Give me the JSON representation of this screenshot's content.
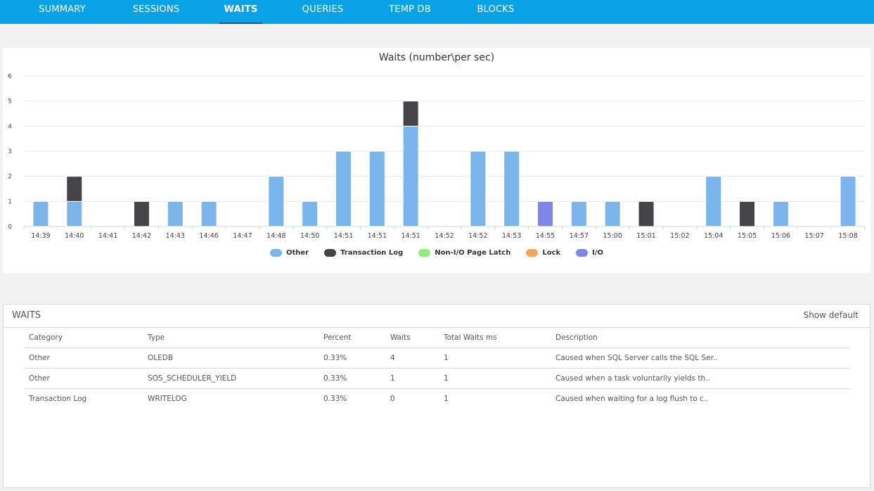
{
  "nav": {
    "tabs": [
      {
        "label": "SUMMARY",
        "active": false
      },
      {
        "label": "SESSIONS",
        "active": false
      },
      {
        "label": "WAITS",
        "active": true
      },
      {
        "label": "QUERIES",
        "active": false
      },
      {
        "label": "TEMP DB",
        "active": false
      },
      {
        "label": "BLOCKS",
        "active": false
      }
    ]
  },
  "colors": {
    "nav_bg": "#0aa2e6",
    "other": "#7cb5ec",
    "transaction_log": "#434348",
    "non_io_page_latch": "#90ed7d",
    "lock": "#f7a35c",
    "io": "#8085e9"
  },
  "chart_data": {
    "type": "bar",
    "title": "Waits (number\\per sec)",
    "stacked": true,
    "ylim": [
      0,
      6
    ],
    "yticks": [
      0,
      1,
      2,
      3,
      4,
      5,
      6
    ],
    "grid": true,
    "legend_position": "bottom",
    "categories": [
      "14:39",
      "14:40",
      "14:41",
      "14:42",
      "14:43",
      "14:46",
      "14:47",
      "14:48",
      "14:50",
      "14:51",
      "14:51",
      "14:51",
      "14:52",
      "14:52",
      "14:53",
      "14:55",
      "14:57",
      "15:00",
      "15:01",
      "15:02",
      "15:04",
      "15:05",
      "15:06",
      "15:07",
      "15:08"
    ],
    "series": [
      {
        "name": "Other",
        "color": "#7cb5ec",
        "values": [
          1,
          1,
          0,
          0,
          1,
          1,
          0,
          2,
          1,
          3,
          3,
          4,
          0,
          3,
          3,
          0,
          1,
          1,
          0,
          0,
          2,
          0,
          1,
          0,
          2
        ]
      },
      {
        "name": "Transaction Log",
        "color": "#434348",
        "values": [
          0,
          1,
          0,
          1,
          0,
          0,
          0,
          0,
          0,
          0,
          0,
          1,
          0,
          0,
          0,
          0,
          0,
          0,
          1,
          0,
          0,
          1,
          0,
          0,
          0
        ]
      },
      {
        "name": "Non-I/O Page Latch",
        "color": "#90ed7d",
        "values": [
          0,
          0,
          0,
          0,
          0,
          0,
          0,
          0,
          0,
          0,
          0,
          0,
          0,
          0,
          0,
          0,
          0,
          0,
          0,
          0,
          0,
          0,
          0,
          0,
          0
        ]
      },
      {
        "name": "Lock",
        "color": "#f7a35c",
        "values": [
          0,
          0,
          0,
          0,
          0,
          0,
          0,
          0,
          0,
          0,
          0,
          0,
          0,
          0,
          0,
          0,
          0,
          0,
          0,
          0,
          0,
          0,
          0,
          0,
          0
        ]
      },
      {
        "name": "I/O",
        "color": "#8085e9",
        "values": [
          0,
          0,
          0,
          0,
          0,
          0,
          0,
          0,
          0,
          0,
          0,
          0,
          0,
          0,
          0,
          1,
          0,
          0,
          0,
          0,
          0,
          0,
          0,
          0,
          0
        ]
      }
    ]
  },
  "waits": {
    "title": "WAITS",
    "show_default": "Show default",
    "columns": [
      "Category",
      "Type",
      "Percent",
      "Waits",
      "Total Waits ms",
      "Description"
    ],
    "rows": [
      [
        "Other",
        "OLEDB",
        "0.33%",
        "4",
        "1",
        "Caused when SQL Server calls the SQL Ser.."
      ],
      [
        "Other",
        "SOS_SCHEDULER_YIELD",
        "0.33%",
        "1",
        "1",
        "Caused when a task voluntarily yields th.."
      ],
      [
        "Transaction Log",
        "WRITELOG",
        "0.33%",
        "0",
        "1",
        "Caused when waiting for a log flush to c.."
      ]
    ]
  }
}
